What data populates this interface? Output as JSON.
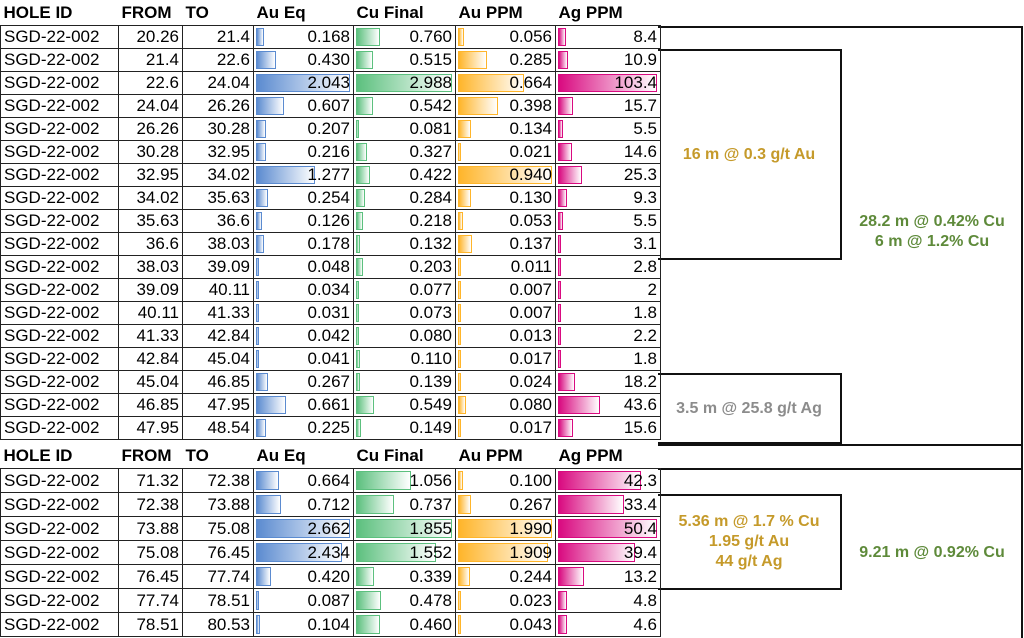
{
  "headers": [
    "HOLE ID",
    "FROM",
    "TO",
    "Au Eq",
    "Cu Final",
    "Au PPM",
    "Ag PPM"
  ],
  "colors": {
    "au_eq": "#5B8BD0",
    "cu": "#5CC07E",
    "au": "#FFB52A",
    "ag": "#D90A80"
  },
  "sections": [
    {
      "rows": [
        [
          "SGD-22-002",
          "20.26",
          "21.4",
          "0.168",
          "0.760",
          "0.056",
          "8.4"
        ],
        [
          "SGD-22-002",
          "21.4",
          "22.6",
          "0.430",
          "0.515",
          "0.285",
          "10.9"
        ],
        [
          "SGD-22-002",
          "22.6",
          "24.04",
          "2.043",
          "2.988",
          "0.664",
          "103.4"
        ],
        [
          "SGD-22-002",
          "24.04",
          "26.26",
          "0.607",
          "0.542",
          "0.398",
          "15.7"
        ],
        [
          "SGD-22-002",
          "26.26",
          "30.28",
          "0.207",
          "0.081",
          "0.134",
          "5.5"
        ],
        [
          "SGD-22-002",
          "30.28",
          "32.95",
          "0.216",
          "0.327",
          "0.021",
          "14.6"
        ],
        [
          "SGD-22-002",
          "32.95",
          "34.02",
          "1.277",
          "0.422",
          "0.940",
          "25.3"
        ],
        [
          "SGD-22-002",
          "34.02",
          "35.63",
          "0.254",
          "0.284",
          "0.130",
          "9.3"
        ],
        [
          "SGD-22-002",
          "35.63",
          "36.6",
          "0.126",
          "0.218",
          "0.053",
          "5.5"
        ],
        [
          "SGD-22-002",
          "36.6",
          "38.03",
          "0.178",
          "0.132",
          "0.137",
          "3.1"
        ],
        [
          "SGD-22-002",
          "38.03",
          "39.09",
          "0.048",
          "0.203",
          "0.011",
          "2.8"
        ],
        [
          "SGD-22-002",
          "39.09",
          "40.11",
          "0.034",
          "0.077",
          "0.007",
          "2"
        ],
        [
          "SGD-22-002",
          "40.11",
          "41.33",
          "0.031",
          "0.073",
          "0.007",
          "1.8"
        ],
        [
          "SGD-22-002",
          "41.33",
          "42.84",
          "0.042",
          "0.080",
          "0.013",
          "2.2"
        ],
        [
          "SGD-22-002",
          "42.84",
          "45.04",
          "0.041",
          "0.110",
          "0.017",
          "1.8"
        ],
        [
          "SGD-22-002",
          "45.04",
          "46.85",
          "0.267",
          "0.139",
          "0.024",
          "18.2"
        ],
        [
          "SGD-22-002",
          "46.85",
          "47.95",
          "0.661",
          "0.549",
          "0.080",
          "43.6"
        ],
        [
          "SGD-22-002",
          "47.95",
          "48.54",
          "0.225",
          "0.149",
          "0.017",
          "15.6"
        ]
      ]
    },
    {
      "rows": [
        [
          "SGD-22-002",
          "71.32",
          "72.38",
          "0.664",
          "1.056",
          "0.100",
          "42.3"
        ],
        [
          "SGD-22-002",
          "72.38",
          "73.88",
          "0.712",
          "0.737",
          "0.267",
          "33.4"
        ],
        [
          "SGD-22-002",
          "73.88",
          "75.08",
          "2.662",
          "1.855",
          "1.990",
          "50.4"
        ],
        [
          "SGD-22-002",
          "75.08",
          "76.45",
          "2.434",
          "1.552",
          "1.909",
          "39.4"
        ],
        [
          "SGD-22-002",
          "76.45",
          "77.74",
          "0.420",
          "0.339",
          "0.244",
          "13.2"
        ],
        [
          "SGD-22-002",
          "77.74",
          "78.51",
          "0.087",
          "0.478",
          "0.023",
          "4.8"
        ],
        [
          "SGD-22-002",
          "78.51",
          "80.53",
          "0.104",
          "0.460",
          "0.043",
          "4.6"
        ]
      ]
    }
  ],
  "annotations": {
    "au_16m": "16 m @ 0.3 g/t Au",
    "cu_28m_line1": "28.2 m @ 0.42% Cu",
    "cu_28m_line2": "6 m @ 1.2% Cu",
    "ag_3_5m": "3.5 m @ 25.8 g/t Ag",
    "cu_5_36m_line1": "5.36 m @ 1.7 % Cu",
    "cu_5_36m_line2": "1.95 g/t Au",
    "cu_5_36m_line3": "44 g/t Ag",
    "cu_9_21m": "9.21 m @ 0.92% Cu"
  }
}
